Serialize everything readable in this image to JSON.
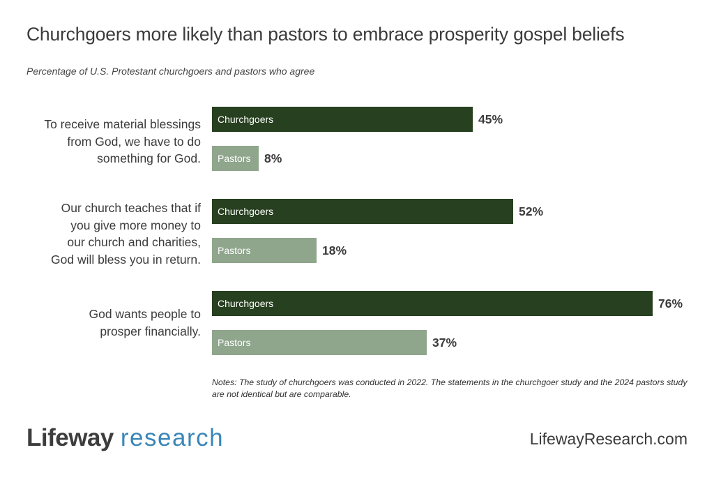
{
  "chart_data": {
    "type": "bar",
    "orientation": "horizontal",
    "title": "Churchgoers more likely than pastors to embrace prosperity gospel beliefs",
    "subtitle": "Percentage of U.S. Protestant churchgoers and pastors who agree",
    "categories": [
      "To receive material blessings from God, we have to do something for God.",
      "Our church teaches that if you give more money to our church and charities, God will bless you in return.",
      "God wants people to prosper financially."
    ],
    "category_lines": [
      [
        "To receive material blessings",
        "from God, we have to do",
        "something for God."
      ],
      [
        "Our church teaches that if",
        "you give more money to",
        "our church and charities,",
        "God will bless you in return."
      ],
      [
        "God wants people to",
        "prosper financially."
      ]
    ],
    "series": [
      {
        "name": "Churchgoers",
        "color": "#27401f",
        "values": [
          45,
          52,
          76
        ],
        "labels": [
          "45%",
          "52%",
          "76%"
        ]
      },
      {
        "name": "Pastors",
        "color": "#8fa68c",
        "values": [
          8,
          18,
          37
        ],
        "labels": [
          "8%",
          "18%",
          "37%"
        ]
      }
    ],
    "xlim": [
      0,
      76
    ],
    "notes": "Notes: The study of churchgoers was conducted in 2022. The statements in the churchgoer study and the 2024 pastors study are not identical but are comparable."
  },
  "footer": {
    "logo_part1": "Lifeway",
    "logo_part2": "research",
    "website": "LifewayResearch.com"
  }
}
